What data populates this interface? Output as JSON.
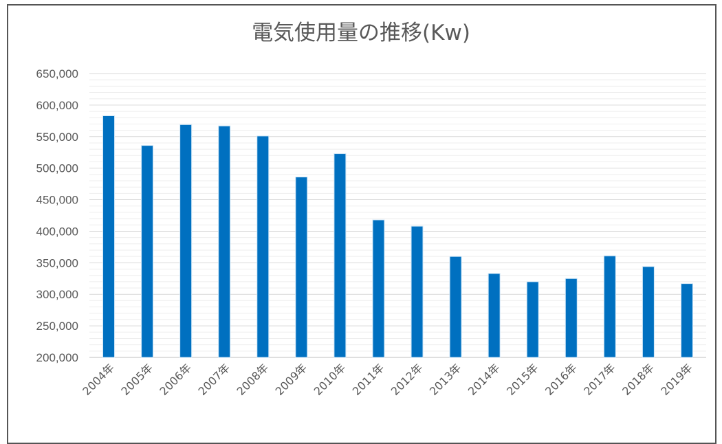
{
  "chart_data": {
    "type": "bar",
    "title": "電気使用量の推移(Kw)",
    "categories": [
      "2004年",
      "2005年",
      "2006年",
      "2007年",
      "2008年",
      "2009年",
      "2010年",
      "2011年",
      "2012年",
      "2013年",
      "2014年",
      "2015年",
      "2016年",
      "2017年",
      "2018年",
      "2019年"
    ],
    "series": [
      {
        "values": [
          583000,
          536000,
          569000,
          567000,
          551000,
          486000,
          523000,
          418000,
          408000,
          360000,
          333000,
          320000,
          325000,
          361000,
          344000,
          317000
        ]
      }
    ],
    "ylim": [
      200000,
      650000
    ],
    "yticks": [
      "200,000",
      "250,000",
      "300,000",
      "350,000",
      "400,000",
      "450,000",
      "500,000",
      "550,000",
      "600,000",
      "650,000"
    ],
    "xlabel": "",
    "ylabel": "",
    "grid": true,
    "colors": {
      "bar": "#0070c0",
      "gridline": "#d9d9d9",
      "axis": "#bfbfbf",
      "text": "#595959"
    }
  }
}
